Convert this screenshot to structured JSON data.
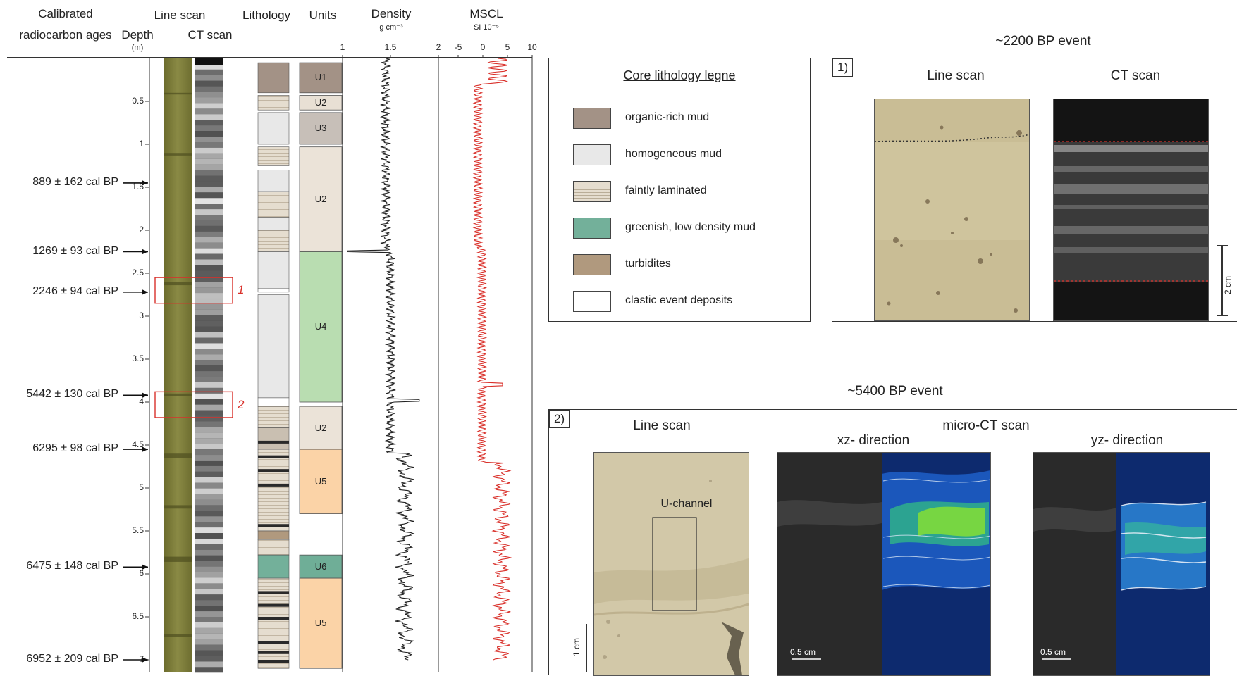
{
  "column_headers": {
    "ages_line1": "Calibrated",
    "ages_line2": "radiocarbon ages",
    "depth": "Depth",
    "depth_unit": "(m)",
    "line_scan": "Line scan",
    "ct_scan": "CT scan",
    "lithology": "Lithology",
    "units": "Units",
    "density": "Density",
    "density_unit": "g cm⁻³",
    "mscl": "MSCL",
    "mscl_unit": "SI 10⁻⁵"
  },
  "depth_ticks": [
    "0.5",
    "1",
    "1.5",
    "2",
    "2.5",
    "3",
    "3.5",
    "4",
    "4.5",
    "5",
    "5.5",
    "6",
    "6.5",
    "7"
  ],
  "density_ticks": [
    "1",
    "1.5",
    "2"
  ],
  "mscl_ticks": [
    "-5",
    "0",
    "5",
    "10"
  ],
  "ages": [
    {
      "label": "889 ± 162 cal BP",
      "depth": 1.45
    },
    {
      "label": "1269 ± 93 cal BP",
      "depth": 2.25
    },
    {
      "label": "2246 ± 94 cal BP",
      "depth": 2.72
    },
    {
      "label": "5442 ± 130 cal BP",
      "depth": 3.92
    },
    {
      "label": "6295 ± 98 cal BP",
      "depth": 4.55
    },
    {
      "label": "6475 ± 148 cal BP",
      "depth": 5.92
    },
    {
      "label": "6952 ± 209 cal BP",
      "depth": 7.0
    }
  ],
  "event_markers": [
    {
      "label": "1",
      "top_depth": 2.55,
      "bottom_depth": 2.85
    },
    {
      "label": "2",
      "top_depth": 3.88,
      "bottom_depth": 4.18
    }
  ],
  "units": [
    {
      "label": "U1",
      "from": 0.05,
      "to": 0.4,
      "color": "#a39286"
    },
    {
      "label": "U2",
      "from": 0.43,
      "to": 0.6,
      "color": "#e8e0d4"
    },
    {
      "label": "U3",
      "from": 0.63,
      "to": 1.0,
      "color": "#c7bfb8"
    },
    {
      "label": "U2",
      "from": 1.03,
      "to": 2.25,
      "color": "#ebe3d8"
    },
    {
      "label": "U4",
      "from": 2.25,
      "to": 4.0,
      "color": "#b9ddb1"
    },
    {
      "label": "U2",
      "from": 4.05,
      "to": 4.55,
      "color": "#ebe3d8"
    },
    {
      "label": "U5",
      "from": 4.55,
      "to": 5.3,
      "color": "#fbd3a7"
    },
    {
      "label": "U6",
      "from": 5.78,
      "to": 6.05,
      "color": "#6fae97"
    },
    {
      "label": "U5",
      "from": 6.05,
      "to": 7.1,
      "color": "#fbd3a7"
    }
  ],
  "legend": {
    "title": "Core lithology legne",
    "items": [
      {
        "label": "organic-rich mud",
        "color": "#a39286"
      },
      {
        "label": "homogeneous mud",
        "color": "#e8e8e8"
      },
      {
        "label": "faintly laminated",
        "color": "#e5ddcf"
      },
      {
        "label": "greenish, low density mud",
        "color": "#73b09a"
      },
      {
        "label": "turbidites",
        "color": "#b0997e"
      },
      {
        "label": "clastic event deposits",
        "color": "#ffffff"
      }
    ]
  },
  "event1": {
    "title": "~2200 BP event",
    "number": "1)",
    "line_scan": "Line scan",
    "ct_scan": "CT scan",
    "scale": "2 cm"
  },
  "event2": {
    "title": "~5400 BP event",
    "number": "2)",
    "line_scan": "Line scan",
    "micro_ct": "micro-CT scan",
    "xz": "xz- direction",
    "yz": "yz- direction",
    "u_channel": "U-channel",
    "scale_1cm": "1 cm",
    "scale_05a": "0.5 cm",
    "scale_05b": "0.5 cm"
  },
  "colors": {
    "line_scan": "#7a7a3a",
    "mscl_curve": "#d9302a",
    "density_curve": "#222222",
    "event_box": "#d9302a"
  }
}
